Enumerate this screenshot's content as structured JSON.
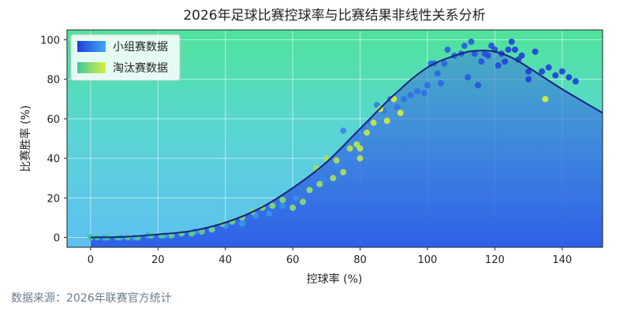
{
  "chart_data": {
    "type": "scatter",
    "title": "2026年足球比赛控球率与比赛结果非线性关系分析",
    "xlabel": "控球率 (%)",
    "ylabel": "比赛胜率 (%)",
    "xlim": [
      -7,
      152
    ],
    "ylim": [
      -5,
      105
    ],
    "x_ticks": [
      0,
      20,
      40,
      60,
      80,
      100,
      120,
      140
    ],
    "y_ticks": [
      0,
      20,
      40,
      60,
      80,
      100
    ],
    "grid": true,
    "legend_position": "top-left",
    "series": [
      {
        "name": "小组赛数据",
        "color_from": "#1f3fd6",
        "color_to": "#3fa9f5",
        "points": [
          [
            0,
            0
          ],
          [
            4,
            0
          ],
          [
            9,
            0
          ],
          [
            13,
            0
          ],
          [
            17,
            1
          ],
          [
            22,
            1
          ],
          [
            27,
            2
          ],
          [
            31,
            3
          ],
          [
            36,
            4
          ],
          [
            40,
            6
          ],
          [
            45,
            7
          ],
          [
            49,
            11
          ],
          [
            53,
            12
          ],
          [
            57,
            16
          ],
          [
            61,
            20
          ],
          [
            65,
            24
          ],
          [
            69,
            29
          ],
          [
            73,
            36
          ],
          [
            75,
            54
          ],
          [
            77,
            40
          ],
          [
            79,
            51
          ],
          [
            81,
            55
          ],
          [
            83,
            58
          ],
          [
            85,
            67
          ],
          [
            87,
            64
          ],
          [
            89,
            70
          ],
          [
            91,
            66
          ],
          [
            93,
            70
          ],
          [
            95,
            72
          ],
          [
            97,
            74
          ],
          [
            99,
            73
          ],
          [
            100,
            77
          ],
          [
            101,
            88
          ],
          [
            102,
            88
          ],
          [
            103,
            83
          ],
          [
            104,
            78
          ],
          [
            105,
            88
          ],
          [
            106,
            95
          ],
          [
            108,
            92
          ],
          [
            110,
            93
          ],
          [
            111,
            97
          ],
          [
            112,
            81
          ],
          [
            113,
            99
          ],
          [
            114,
            93
          ],
          [
            115,
            77
          ],
          [
            116,
            89
          ],
          [
            117,
            93
          ],
          [
            118,
            92
          ],
          [
            119,
            97
          ],
          [
            120,
            95
          ],
          [
            121,
            87
          ],
          [
            122,
            93
          ],
          [
            123,
            89
          ],
          [
            124,
            95
          ],
          [
            125,
            99
          ],
          [
            126,
            95
          ],
          [
            127,
            90
          ],
          [
            128,
            92
          ],
          [
            130,
            84
          ],
          [
            130,
            80
          ],
          [
            132,
            94
          ],
          [
            134,
            84
          ],
          [
            136,
            86
          ],
          [
            138,
            82
          ],
          [
            140,
            84
          ],
          [
            142,
            81
          ],
          [
            144,
            79
          ]
        ]
      },
      {
        "name": "淘汰赛数据",
        "color_from": "#3fc8a0",
        "color_to": "#d9f03c",
        "points": [
          [
            0,
            0
          ],
          [
            2,
            0
          ],
          [
            5,
            0
          ],
          [
            8,
            0
          ],
          [
            11,
            0
          ],
          [
            14,
            0
          ],
          [
            18,
            1
          ],
          [
            21,
            1
          ],
          [
            24,
            1
          ],
          [
            27,
            2
          ],
          [
            30,
            2
          ],
          [
            33,
            3
          ],
          [
            36,
            4
          ],
          [
            39,
            7
          ],
          [
            42,
            8
          ],
          [
            45,
            10
          ],
          [
            48,
            13
          ],
          [
            51,
            15
          ],
          [
            54,
            16
          ],
          [
            57,
            19
          ],
          [
            60,
            15
          ],
          [
            63,
            18
          ],
          [
            65,
            24
          ],
          [
            67,
            35
          ],
          [
            68,
            27
          ],
          [
            70,
            40
          ],
          [
            72,
            30
          ],
          [
            73,
            39
          ],
          [
            75,
            33
          ],
          [
            77,
            45
          ],
          [
            79,
            47
          ],
          [
            80,
            40
          ],
          [
            80,
            45
          ],
          [
            82,
            53
          ],
          [
            84,
            58
          ],
          [
            86,
            65
          ],
          [
            88,
            59
          ],
          [
            90,
            70
          ],
          [
            92,
            63
          ],
          [
            135,
            70
          ]
        ]
      }
    ],
    "trend_line": {
      "name": "trend",
      "color": "#1a237e",
      "x": [
        0,
        10,
        20,
        30,
        40,
        50,
        60,
        70,
        80,
        90,
        100,
        110,
        115,
        120,
        125,
        130,
        140,
        150,
        152
      ],
      "y": [
        0,
        0.3,
        1.5,
        3.3,
        7.5,
        14.5,
        25,
        38,
        55,
        72,
        86,
        93,
        94.5,
        94,
        91,
        86,
        75,
        65,
        63
      ]
    }
  },
  "legend": {
    "items": [
      "小组赛数据",
      "淘汰赛数据"
    ]
  },
  "source_note": "数据来源：2026年联赛官方统计"
}
